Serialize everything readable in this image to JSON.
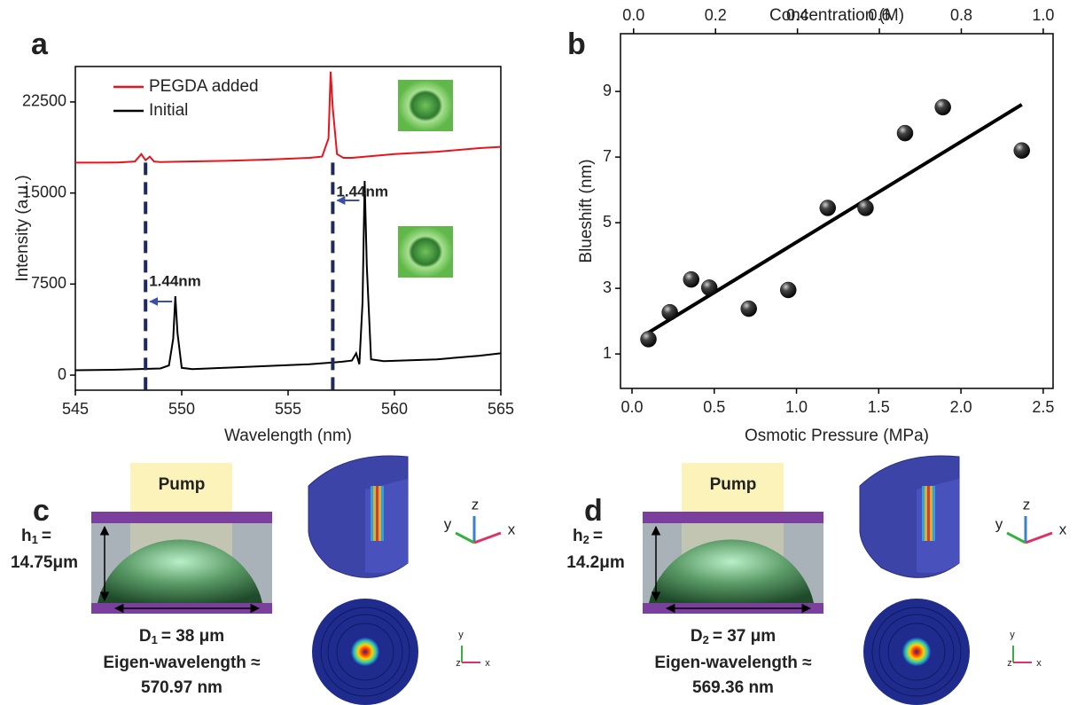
{
  "chart_data": [
    {
      "type": "line",
      "panel_label": "a",
      "x_label": "Wavelength (nm)",
      "y_label": "Intensity (a.u.)",
      "xlim": [
        545,
        565
      ],
      "xticks": [
        545,
        550,
        555,
        560,
        565
      ],
      "ylim": [
        -1240,
        25420
      ],
      "yticks": [
        0,
        7500,
        15000,
        22500
      ],
      "series": [
        {
          "name": "PEGDA added",
          "color": "#e8141c",
          "x": [
            545,
            546,
            547,
            547.8,
            548.1,
            548.3,
            548.5,
            548.7,
            549,
            550,
            552,
            554,
            556,
            556.6,
            556.9,
            557.0,
            557.1,
            557.3,
            557.6,
            558,
            560,
            562,
            564,
            565
          ],
          "values": [
            17500,
            17500,
            17520,
            17600,
            18200,
            17700,
            18000,
            17600,
            17550,
            17580,
            17650,
            17750,
            17900,
            18000,
            19500,
            25000,
            22000,
            18200,
            17900,
            17900,
            18200,
            18400,
            18700,
            18800
          ]
        },
        {
          "name": "Initial",
          "color": "#000000",
          "x": [
            545,
            547,
            549,
            549.4,
            549.6,
            549.7,
            549.8,
            550,
            550.5,
            552,
            554,
            556,
            557.5,
            558,
            558.2,
            558.35,
            558.5,
            558.6,
            558.7,
            558.9,
            559.5,
            562,
            564,
            565
          ],
          "values": [
            400,
            450,
            550,
            800,
            3000,
            6500,
            3500,
            600,
            500,
            600,
            750,
            900,
            1100,
            1200,
            1800,
            900,
            6000,
            16000,
            9000,
            1300,
            1150,
            1300,
            1600,
            1800
          ]
        }
      ],
      "shift_lines": {
        "x": [
          548.3,
          557.1
        ],
        "color": "#1f2a5c"
      },
      "annotations": [
        "1.44nm",
        "1.44nm"
      ],
      "annotation_color": "#3a4fa8"
    },
    {
      "type": "scatter",
      "panel_label": "b",
      "x_label": "Osmotic Pressure (MPa)",
      "y_label": "Blueshift (nm)",
      "x2_label": "Concentration (M)",
      "xlim": [
        -0.07,
        2.56
      ],
      "xticks": [
        {
          "value": 0,
          "label": "0.0"
        },
        0.5,
        {
          "value": 1,
          "label": "1.0"
        },
        1.5,
        {
          "value": 2,
          "label": "2.0"
        },
        2.5
      ],
      "x2lim": [
        -0.032,
        1.024
      ],
      "x2ticks": [
        {
          "value": 0,
          "label": "0.0"
        },
        0.2,
        0.4,
        0.6,
        0.8,
        {
          "value": 1,
          "label": "1.0"
        }
      ],
      "ylim": [
        -0.05,
        10.76
      ],
      "yticks": [
        1,
        3,
        5,
        7,
        9
      ],
      "x": [
        0.1,
        0.23,
        0.36,
        0.47,
        0.71,
        0.95,
        1.19,
        1.42,
        1.66,
        1.89,
        2.37
      ],
      "values": [
        1.45,
        2.27,
        3.27,
        3.02,
        2.38,
        2.95,
        5.45,
        5.45,
        7.73,
        8.52,
        7.2
      ],
      "color": "#111111",
      "fit_line": {
        "x": [
          0.1,
          2.37
        ],
        "values": [
          1.65,
          8.6
        ],
        "color": "#000000"
      }
    }
  ],
  "diagrams": [
    {
      "panel_label": "c",
      "pump": "Pump",
      "height": {
        "symbol": "h",
        "sub": "1",
        "eq": "=",
        "value": "14.75μm"
      },
      "diameter": {
        "symbol": "D",
        "sub": "1",
        "rest": "= 38 μm"
      },
      "eigen_label": "Eigen-wavelength ≈",
      "eigen_value": "570.97 nm",
      "axes3d": [
        "y",
        "z",
        "x"
      ],
      "axes2d": [
        "y",
        "z",
        "x"
      ]
    },
    {
      "panel_label": "d",
      "pump": "Pump",
      "height": {
        "symbol": "h",
        "sub": "2",
        "eq": "=",
        "value": "14.2μm"
      },
      "diameter": {
        "symbol": "D",
        "sub": "2",
        "rest": "= 37 μm"
      },
      "eigen_label": "Eigen-wavelength ≈",
      "eigen_value": "569.36 nm",
      "axes3d": [
        "y",
        "z",
        "x"
      ],
      "axes2d": [
        "y",
        "z",
        "x"
      ]
    }
  ]
}
